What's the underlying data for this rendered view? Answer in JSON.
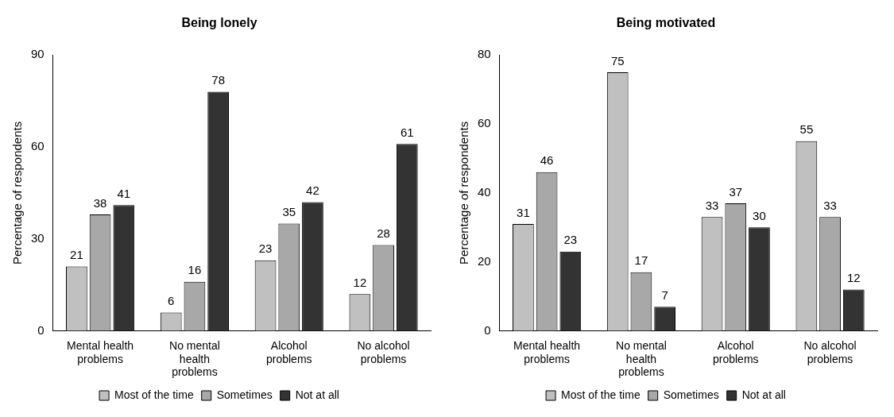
{
  "chart_data": [
    {
      "type": "bar",
      "title": "Being lonely",
      "ylabel": "Percentage of respondents",
      "categories": [
        "Mental health problems",
        "No mental health problems",
        "Alcohol problems",
        "No alcohol problems"
      ],
      "series": [
        {
          "name": "Most of the time",
          "color": "#c0c0c0",
          "values": [
            21,
            6,
            23,
            12
          ]
        },
        {
          "name": "Sometimes",
          "color": "#a8a8a8",
          "values": [
            38,
            16,
            35,
            28
          ]
        },
        {
          "name": "Not at all",
          "color": "#333333",
          "values": [
            41,
            78,
            42,
            61
          ]
        }
      ],
      "ylim": [
        0,
        90
      ],
      "yticks": [
        0,
        30,
        60,
        90
      ],
      "grid": false,
      "legend": "bottom",
      "data_labels": true
    },
    {
      "type": "bar",
      "title": "Being motivated",
      "ylabel": "Percentage of respondents",
      "categories": [
        "Mental health problems",
        "No mental health problems",
        "Alcohol problems",
        "No alcohol problems"
      ],
      "series": [
        {
          "name": "Most of the time",
          "color": "#c0c0c0",
          "values": [
            31,
            75,
            33,
            55
          ]
        },
        {
          "name": "Sometimes",
          "color": "#a8a8a8",
          "values": [
            46,
            17,
            37,
            33
          ]
        },
        {
          "name": "Not at all",
          "color": "#333333",
          "values": [
            23,
            7,
            30,
            12
          ]
        }
      ],
      "ylim": [
        0,
        80
      ],
      "yticks": [
        0,
        20,
        40,
        60,
        80
      ],
      "grid": false,
      "legend": "bottom",
      "data_labels": true
    }
  ]
}
